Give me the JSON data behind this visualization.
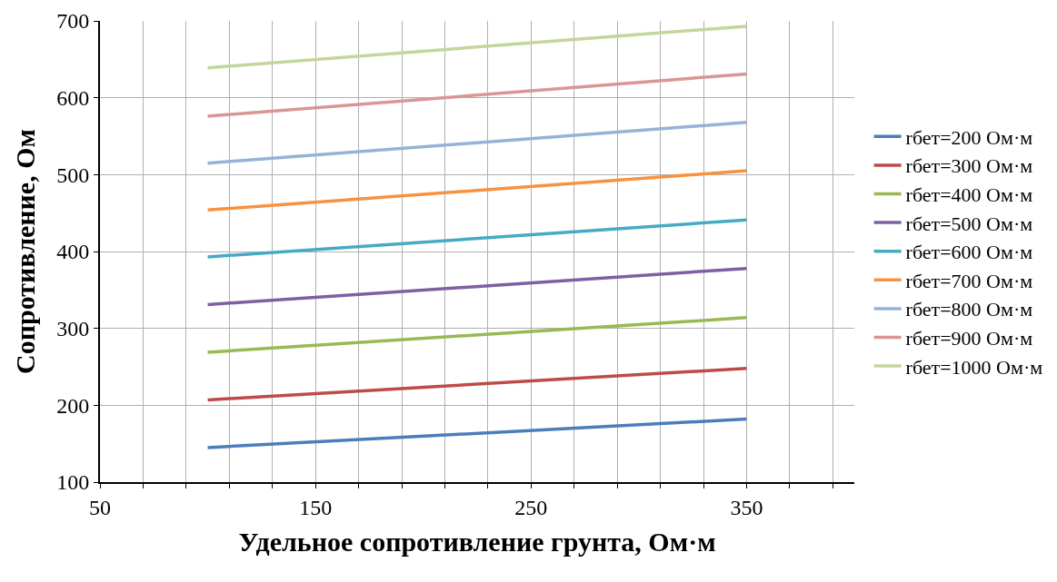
{
  "chart_data": {
    "type": "line",
    "xlabel": "Удельное сопротивление грунта, Ом·м",
    "ylabel": "Сопротивление, Ом",
    "x": [
      100,
      350
    ],
    "series": [
      {
        "name": "rбет=200 Ом·м",
        "color": "#4a7ebb",
        "values": [
          145,
          182
        ]
      },
      {
        "name": "rбет=300 Ом·м",
        "color": "#be4b48",
        "values": [
          207,
          248
        ]
      },
      {
        "name": "rбет=400 Ом·м",
        "color": "#98b954",
        "values": [
          269,
          314
        ]
      },
      {
        "name": "rбет=500 Ом·м",
        "color": "#7d60a0",
        "values": [
          331,
          378
        ]
      },
      {
        "name": "rбет=600 Ом·м",
        "color": "#46aac5",
        "values": [
          393,
          441
        ]
      },
      {
        "name": "rбет=700 Ом·м",
        "color": "#f69240",
        "values": [
          454,
          505
        ]
      },
      {
        "name": "rбет=800 Ом·м",
        "color": "#95b3d7",
        "values": [
          515,
          568
        ]
      },
      {
        "name": "rбет=900 Ом·м",
        "color": "#d99694",
        "values": [
          576,
          631
        ]
      },
      {
        "name": "rбет=1000 Ом·м",
        "color": "#c3d69b",
        "values": [
          639,
          693
        ]
      }
    ],
    "xlim": [
      50,
      400
    ],
    "xticks": [
      50,
      {
        "value": 70,
        "label": null
      },
      {
        "value": 90,
        "label": null
      },
      {
        "value": 110,
        "label": null
      },
      {
        "value": 130,
        "label": null
      },
      150,
      {
        "value": 170,
        "label": null
      },
      {
        "value": 190,
        "label": null
      },
      {
        "value": 210,
        "label": null
      },
      {
        "value": 230,
        "label": null
      },
      250,
      {
        "value": 270,
        "label": null
      },
      {
        "value": 290,
        "label": null
      },
      {
        "value": 310,
        "label": null
      },
      {
        "value": 330,
        "label": null
      },
      350,
      {
        "value": 370,
        "label": null
      },
      {
        "value": 390,
        "label": null
      }
    ],
    "ylim": [
      100,
      700
    ],
    "yticks": [
      100,
      200,
      300,
      400,
      500,
      600,
      700
    ],
    "grid": true,
    "legend": "right",
    "marker": "none",
    "line_style": "solid"
  }
}
